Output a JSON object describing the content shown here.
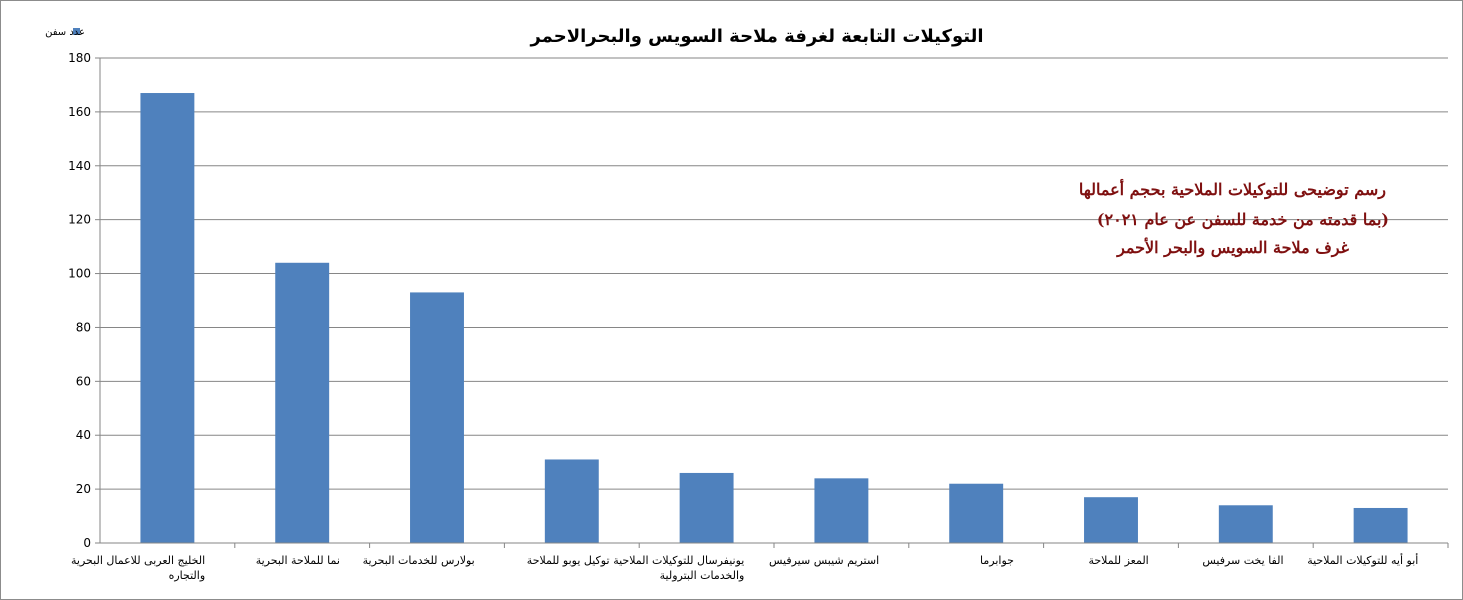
{
  "chart_data": {
    "type": "bar",
    "title": "التوكيلات التابعة لغرفة ملاحة السويس والبحرالاحمر",
    "legend": {
      "placement": "top-left"
    },
    "series": [
      {
        "name": "عدد سفن",
        "color": "#4f81bd",
        "values": [
          167,
          104,
          93,
          31,
          26,
          24,
          22,
          17,
          14,
          13
        ]
      }
    ],
    "categories": [
      [
        "الخليج العربى للاعمال البحرية",
        "والتجاره"
      ],
      [
        "نما للملاحة البحرية"
      ],
      [
        "بولارس للخدمات البحرية"
      ],
      [
        "توكيل يوبو للملاحة"
      ],
      [
        "يونيفرسال للتوكيلات الملاحية",
        "والخدمات البترولية"
      ],
      [
        "استريم شيبس سيرفيس"
      ],
      [
        "جوابرما"
      ],
      [
        "المعز للملاحة"
      ],
      [
        "الفا يخت سرفيس"
      ],
      [
        "أبو أيه للتوكيلات الملاحية"
      ]
    ],
    "y_ticks": [
      0,
      20,
      40,
      60,
      80,
      100,
      120,
      140,
      160,
      180
    ],
    "ylim": [
      0,
      180
    ],
    "grid": true,
    "xlabel": "",
    "ylabel": "",
    "annotation": {
      "lines": [
        "رسم توضيحى للتوكيلات الملاحية بحجم أعمالها",
        "(بما قدمته من خدمة للسفن عن عام ٢٠٢١)",
        "غرف ملاحة السويس والبحر الأحمر"
      ],
      "color": "#7f1010"
    }
  }
}
